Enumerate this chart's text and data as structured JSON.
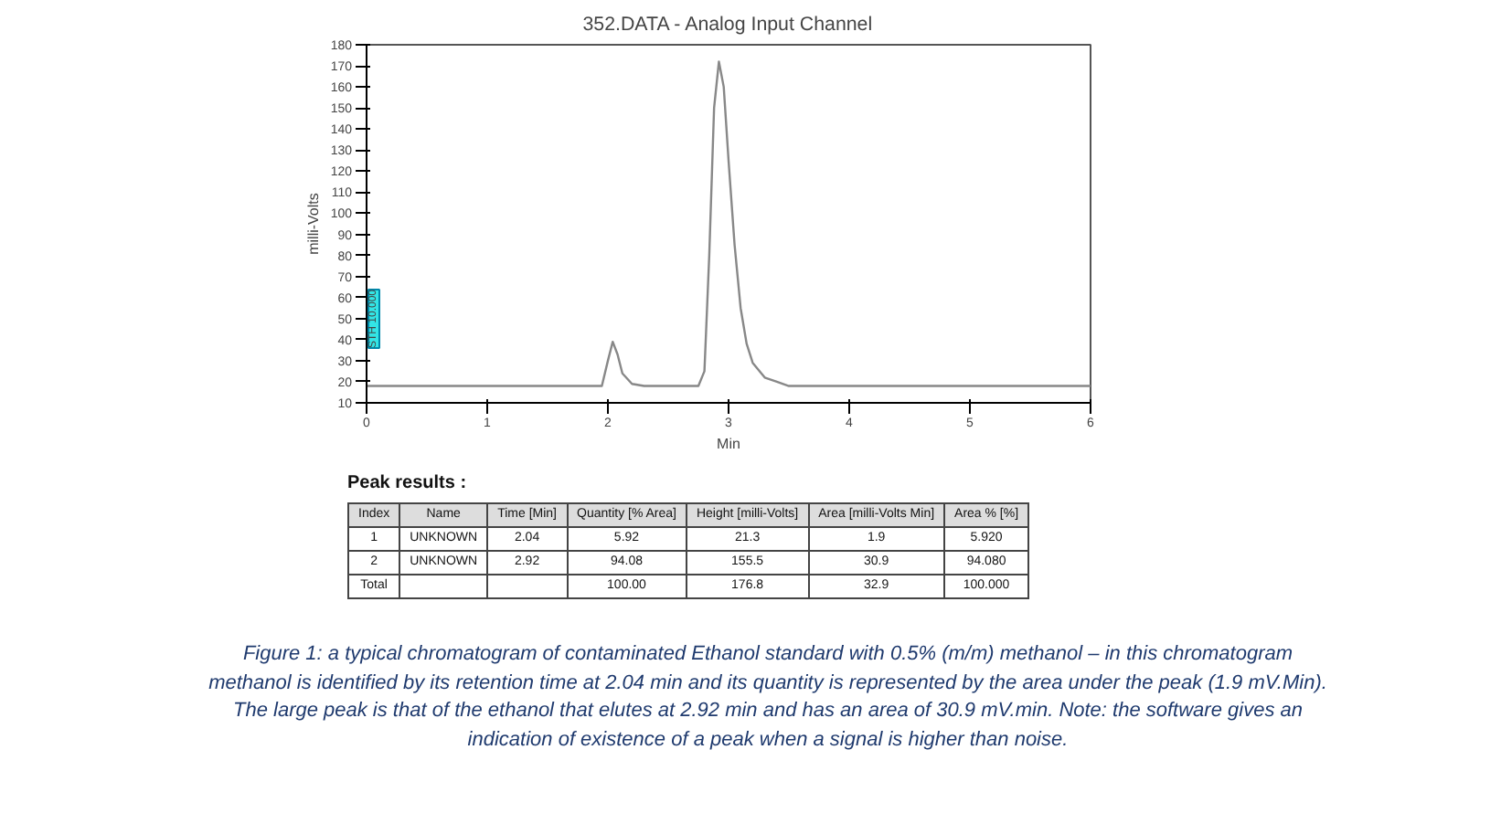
{
  "chart_data": {
    "type": "line",
    "title": "352.DATA - Analog Input Channel",
    "xlabel": "Min",
    "ylabel": "milli-Volts",
    "x": [
      0,
      1.0,
      1.95,
      2.0,
      2.04,
      2.08,
      2.12,
      2.2,
      2.3,
      2.75,
      2.8,
      2.84,
      2.88,
      2.92,
      2.96,
      3.0,
      3.05,
      3.1,
      3.15,
      3.2,
      3.3,
      3.4,
      3.5,
      3.7,
      6.0
    ],
    "series": [
      {
        "color": "#888888",
        "values": [
          18,
          18,
          18,
          30,
          39,
          33,
          24,
          19,
          18,
          18,
          25,
          80,
          150,
          172,
          160,
          125,
          85,
          55,
          38,
          29,
          22,
          20,
          18,
          18,
          18
        ]
      }
    ],
    "xlim": [
      0,
      6
    ],
    "xticks": [
      0,
      1,
      2,
      3,
      4,
      5,
      6
    ],
    "ylim": [
      10,
      180
    ],
    "yticks": [
      10,
      20,
      30,
      40,
      50,
      60,
      70,
      80,
      90,
      100,
      110,
      120,
      130,
      140,
      150,
      160,
      170,
      180
    ],
    "grid": false,
    "marker": "none",
    "line_style": "solid",
    "annotations": [
      "STH 10.000",
      "Peak results :",
      "Index",
      "Name",
      "Time [Min]",
      "Quantity [% Area]",
      "Height [milli-Volts]",
      "Area [milli-Volts Min]",
      "Area % [%]",
      "1",
      "UNKNOWN",
      "2.04",
      "5.92",
      "21.3",
      "1.9",
      "5.920",
      "2",
      "UNKNOWN",
      "2.92",
      "94.08",
      "155.5",
      "30.9",
      "94.080",
      "Total",
      null,
      null,
      "100.00",
      "176.8",
      "32.9",
      "100.000",
      "Figure 1: a typical chromatogram of contaminated Ethanol standard with 0.5% (m/m) methanol – in this chromatogram methanol is identified by its retention time at 2.04 min and its quantity is represented by the area under the peak (1.9 mV.Min). The large peak is that of the ethanol that elutes at 2.92 min and has an area of 30.9 mV.min. Note: the software gives an indication of existence of a peak when a signal is higher than noise."
    ]
  }
}
